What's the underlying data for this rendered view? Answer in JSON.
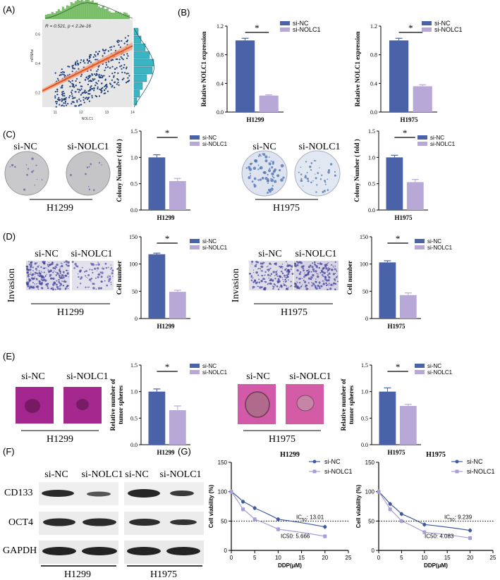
{
  "panel_labels": [
    "(A)",
    "(B)",
    "(C)",
    "(D)",
    "(E)",
    "(F)",
    "(G)"
  ],
  "colors": {
    "nc": "#4a63a8",
    "nolc1": "#b8a8d8",
    "scatter_bg": "#e6e6e6",
    "hist": "#7cc36b",
    "marg": "#3bb5c3",
    "fit": "#e8501d",
    "dots": "#1f3f7a",
    "stain": "#a0308f",
    "nc_curve": "#3d5a9e",
    "nolc1_curve": "#a99dd6"
  },
  "labels": {
    "si_nc": "si-NC",
    "si_nolc1": "si-NOLC1",
    "invasion": "Invasion",
    "h1299": "H1299",
    "h1975": "H1975",
    "cd133": "CD133",
    "oct4": "OCT4",
    "gapdh": "GAPDH",
    "star": "*"
  },
  "chart_data": [
    {
      "id": "A",
      "type": "scatter",
      "annotation": "R = 0.521, p < 2.2e-16",
      "xlabel": "NOLC1",
      "ylabel": "mRNAsi",
      "xticks": [
        11,
        12,
        13,
        14
      ],
      "yticks": [
        0.2,
        0.4,
        0.6
      ],
      "xlim": [
        10.5,
        14
      ],
      "ylim": [
        0.1,
        0.7
      ]
    },
    {
      "id": "B1",
      "type": "bar",
      "cell": "H1299",
      "ylabel": "Relative NOLC1 expression",
      "categories": [
        "si-NC",
        "si-NOLC1"
      ],
      "values": [
        1.0,
        0.23
      ],
      "errors": [
        0.03,
        0.01
      ],
      "ylim": [
        0,
        1.2
      ],
      "yticks": [
        0.0,
        0.4,
        0.8,
        1.2
      ],
      "yticklabels": [
        "0.0",
        "0.4",
        "0.8",
        "1.2"
      ],
      "star": true
    },
    {
      "id": "B2",
      "type": "bar",
      "cell": "H1975",
      "ylabel": "Relative NOLC1 expression",
      "categories": [
        "si-NC",
        "si-NOLC1"
      ],
      "values": [
        1.0,
        0.36
      ],
      "errors": [
        0.03,
        0.02
      ],
      "ylim": [
        0,
        1.2
      ],
      "yticks": [
        0.0,
        0.4,
        0.8,
        1.2
      ],
      "yticklabels": [
        "0.0",
        "0.4",
        "0.8",
        "1.2"
      ],
      "star": true
    },
    {
      "id": "C1",
      "type": "bar",
      "cell": "H1299",
      "ylabel": "Colony Number ( fold )",
      "categories": [
        "si-NC",
        "si-NOLC1"
      ],
      "values": [
        1.0,
        0.55
      ],
      "errors": [
        0.05,
        0.05
      ],
      "ylim": [
        0,
        1.5
      ],
      "yticks": [
        0.0,
        0.5,
        1.0,
        1.5
      ],
      "yticklabels": [
        "0.0",
        "0.5",
        "1.0",
        "1.5"
      ],
      "star": true
    },
    {
      "id": "C2",
      "type": "bar",
      "cell": "H1975",
      "ylabel": "Colony Number ( fold )",
      "categories": [
        "si-NC",
        "si-NOLC1"
      ],
      "values": [
        1.0,
        0.53
      ],
      "errors": [
        0.04,
        0.05
      ],
      "ylim": [
        0,
        1.5
      ],
      "yticks": [
        0.0,
        0.5,
        1.0,
        1.5
      ],
      "yticklabels": [
        "0.0",
        "0.5",
        "1.0",
        "1.5"
      ],
      "star": true
    },
    {
      "id": "D1",
      "type": "bar",
      "cell": "H1299",
      "ylabel": "Cell number",
      "categories": [
        "si-NC",
        "si-NOLC1"
      ],
      "values": [
        118,
        49
      ],
      "errors": [
        2,
        3
      ],
      "ylim": [
        0,
        150
      ],
      "yticks": [
        0,
        50,
        100,
        150
      ],
      "yticklabels": [
        "0",
        "50",
        "100",
        "150"
      ],
      "star": true
    },
    {
      "id": "D2",
      "type": "bar",
      "cell": "H1975",
      "ylabel": "Cell number",
      "categories": [
        "si-NC",
        "si-NOLC1"
      ],
      "values": [
        103,
        43
      ],
      "errors": [
        3,
        4
      ],
      "ylim": [
        0,
        150
      ],
      "yticks": [
        0,
        50,
        100,
        150
      ],
      "yticklabels": [
        "0",
        "50",
        "100",
        "150"
      ],
      "star": true
    },
    {
      "id": "E1",
      "type": "bar",
      "cell": "H1299",
      "ylabel": "Relative number of tumor spheres",
      "categories": [
        "si-NC",
        "si-NOLC1"
      ],
      "values": [
        1.0,
        0.65
      ],
      "errors": [
        0.05,
        0.08
      ],
      "ylim": [
        0,
        1.5
      ],
      "yticks": [
        0.0,
        0.5,
        1.0,
        1.5
      ],
      "yticklabels": [
        "0.0",
        "0.5",
        "1.0",
        "1.5"
      ],
      "star": true
    },
    {
      "id": "E2",
      "type": "bar",
      "cell": "H1975",
      "ylabel": "Relative number of tumor spheres",
      "categories": [
        "si-NC",
        "si-NOLC1"
      ],
      "values": [
        1.0,
        0.73
      ],
      "errors": [
        0.07,
        0.03
      ],
      "ylim": [
        0,
        1.5
      ],
      "yticks": [
        0.0,
        0.5,
        1.0,
        1.5
      ],
      "yticklabels": [
        "0.0",
        "0.5",
        "1.0",
        "1.5"
      ],
      "star": true
    },
    {
      "id": "G1",
      "type": "line",
      "title": "H1299",
      "xlabel": "DDP(μM)",
      "ylabel": "Cell viability (%)",
      "xticks": [
        0,
        5,
        10,
        15,
        20,
        25
      ],
      "yticks": [
        0,
        50,
        100,
        150
      ],
      "xlim": [
        0,
        25
      ],
      "ylim": [
        0,
        150
      ],
      "series": [
        {
          "name": "si-NC",
          "x": [
            0,
            2.5,
            5,
            10,
            20
          ],
          "y": [
            100,
            83,
            72,
            53,
            40
          ]
        },
        {
          "name": "si-NOLC1",
          "x": [
            0,
            2.5,
            5,
            10,
            20
          ],
          "y": [
            100,
            70,
            53,
            36,
            24
          ]
        }
      ],
      "ic50_nc": "IC",
      "ic50_nc_sub": "50",
      "ic50_nc_val": ": 13.01",
      "ic50_nolc1": "IC50: 5.666"
    },
    {
      "id": "G2",
      "type": "line",
      "title": "H1975",
      "xlabel": "DDP(μM)",
      "ylabel": "Cell viability (%)",
      "xticks": [
        0,
        5,
        10,
        15,
        20,
        25
      ],
      "yticks": [
        0,
        50,
        100,
        150
      ],
      "xlim": [
        0,
        25
      ],
      "ylim": [
        0,
        150
      ],
      "series": [
        {
          "name": "si-NC",
          "x": [
            0,
            2.5,
            5,
            10,
            20
          ],
          "y": [
            100,
            79,
            62,
            44,
            34
          ]
        },
        {
          "name": "si-NOLC1",
          "x": [
            0,
            2.5,
            5,
            10,
            20
          ],
          "y": [
            100,
            70,
            50,
            31,
            21
          ]
        }
      ],
      "ic50_nc": "IC",
      "ic50_nc_sub": "50",
      "ic50_nc_val": ": 9.239",
      "ic50_nolc1": "IC50: 4.083"
    }
  ]
}
